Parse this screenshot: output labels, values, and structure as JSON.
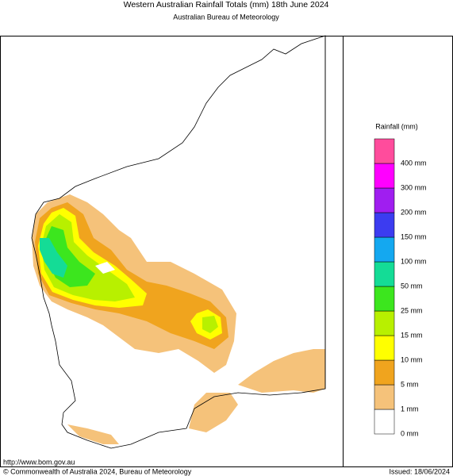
{
  "header": {
    "title": "Western Australian Rainfall Totals (mm) 18th June 2024",
    "subtitle": "Australian Bureau of Meteorology"
  },
  "legend": {
    "title": "Rainfall (mm)",
    "items": [
      {
        "label": "0 mm",
        "color": "#ffffff"
      },
      {
        "label": "1 mm",
        "color": "#f5c27a"
      },
      {
        "label": "5 mm",
        "color": "#f0a41e"
      },
      {
        "label": "10 mm",
        "color": "#ffff00"
      },
      {
        "label": "15 mm",
        "color": "#b8f000"
      },
      {
        "label": "25 mm",
        "color": "#3ce61e"
      },
      {
        "label": "50 mm",
        "color": "#14dc96"
      },
      {
        "label": "100 mm",
        "color": "#14a8f0"
      },
      {
        "label": "150 mm",
        "color": "#3c3cf0"
      },
      {
        "label": "200 mm",
        "color": "#a01ef0"
      },
      {
        "label": "300 mm",
        "color": "#ff00ff"
      },
      {
        "label": "400 mm",
        "color": "#ff4c9c"
      }
    ]
  },
  "footer": {
    "url": "http://www.bom.gov.au",
    "copyright": "© Commonwealth of Australia 2024, Bureau of Meteorology",
    "issued": "Issued: 18/06/2024"
  }
}
